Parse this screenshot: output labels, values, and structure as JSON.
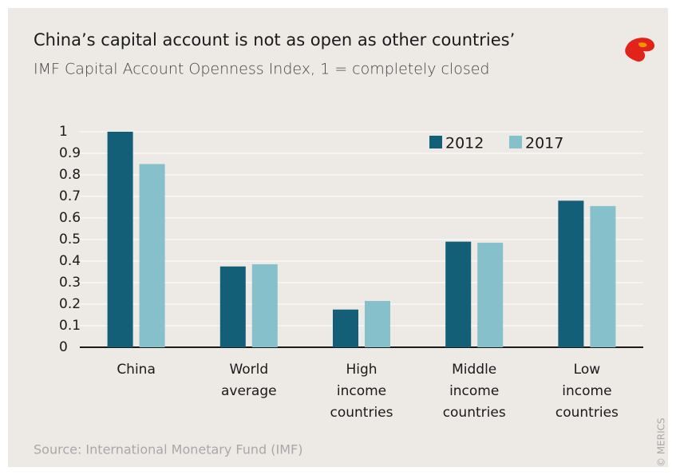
{
  "chart_data": {
    "type": "bar",
    "title": "China’s capital account is not as open as other countries’",
    "subtitle": "IMF Capital Account Openness Index, 1 = completely closed",
    "categories": [
      "China",
      "World average",
      "High income countries",
      "Middle income countries",
      "Low income countries"
    ],
    "series": [
      {
        "name": "2012",
        "color": "#135f78",
        "values": [
          1,
          0.375,
          0.175,
          0.49,
          0.68
        ]
      },
      {
        "name": "2017",
        "color": "#86c0cb",
        "values": [
          0.85,
          0.385,
          0.215,
          0.485,
          0.655
        ]
      }
    ],
    "ylim": [
      0,
      1
    ],
    "yticks": [
      0,
      0.1,
      0.2,
      0.3,
      0.4,
      0.5,
      0.6,
      0.7,
      0.8,
      0.9,
      1
    ],
    "grid": true,
    "legend": "top-right",
    "source": "Source: International Monetary Fund (IMF)",
    "credit": "© MERICS"
  }
}
